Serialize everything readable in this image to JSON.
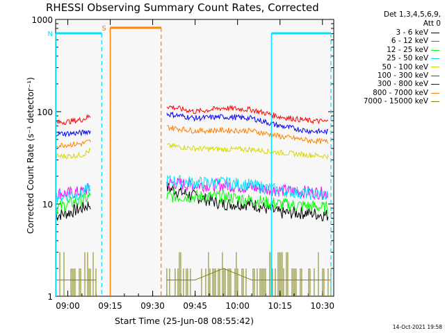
{
  "title": "RHESSI Observing Summary Count Rates, Corrected",
  "legend_header": [
    "Det 1,3,4,5,6,9,",
    "Att 0"
  ],
  "ylabel": "Corrected Count Rate (s⁻¹ detector⁻¹)",
  "xlabel": "Start Time (25-Jun-08 08:55:42)",
  "footer": "14-Oct-2021 19:58",
  "flags": [
    {
      "label": "S",
      "color": "#ff8000",
      "start": 9.25,
      "end": 9.55
    },
    {
      "label": "N",
      "color": "#00e0ff",
      "start": 8.93,
      "end": 9.2
    }
  ],
  "chart_data": {
    "type": "line",
    "title": "RHESSI Observing Summary Count Rates, Corrected",
    "xlabel": "Start Time (25-Jun-08 08:55:42)",
    "ylabel": "Corrected Count Rate (s⁻¹ detector⁻¹)",
    "yscale": "log",
    "ylim": [
      1,
      1000
    ],
    "xlim": [
      "08:55:42",
      "10:34:00"
    ],
    "x_ticks": [
      "09:00",
      "09:15",
      "09:30",
      "09:45",
      "10:00",
      "10:15",
      "10:30"
    ],
    "y_ticks": [
      "1",
      "10",
      "100",
      "1000"
    ],
    "legend_position": "right, outside plot",
    "series": [
      {
        "name": "3 - 6 keV",
        "color": "#000000",
        "segments": [
          {
            "x": [
              "08:55:42",
              "09:00",
              "09:05",
              "09:08"
            ],
            "y": [
              7.5,
              8,
              9,
              10
            ]
          },
          {
            "x": [
              "09:35",
              "09:45",
              "09:55",
              "10:05",
              "10:15",
              "10:25",
              "10:32"
            ],
            "y": [
              15,
              12,
              10,
              10,
              8,
              8,
              7.5
            ]
          }
        ]
      },
      {
        "name": "6 - 12 keV",
        "color": "#ff00ff",
        "segments": [
          {
            "x": [
              "08:55:42",
              "09:00",
              "09:05",
              "09:08"
            ],
            "y": [
              13,
              13,
              13.5,
              15
            ]
          },
          {
            "x": [
              "09:35",
              "09:45",
              "09:55",
              "10:05",
              "10:15",
              "10:25",
              "10:32"
            ],
            "y": [
              17,
              16,
              16,
              15,
              14,
              13.5,
              13
            ]
          }
        ]
      },
      {
        "name": "12 - 25 keV",
        "color": "#00ff00",
        "segments": [
          {
            "x": [
              "08:55:42",
              "09:00",
              "09:05",
              "09:08"
            ],
            "y": [
              9,
              10,
              11,
              12
            ]
          },
          {
            "x": [
              "09:35",
              "09:45",
              "09:55",
              "10:05",
              "10:15",
              "10:25",
              "10:32"
            ],
            "y": [
              12,
              12,
              12,
              11,
              10,
              9.5,
              9
            ]
          }
        ]
      },
      {
        "name": "25 - 50 keV",
        "color": "#00e0ff",
        "segments": [
          {
            "x": [
              "08:55:42",
              "09:00",
              "09:05",
              "09:08"
            ],
            "y": [
              12,
              12.5,
              13,
              15
            ]
          },
          {
            "x": [
              "09:35",
              "09:45",
              "09:55",
              "10:05",
              "10:15",
              "10:25",
              "10:32"
            ],
            "y": [
              18,
              17,
              17,
              16,
              14,
              13,
              12.5
            ]
          }
        ]
      },
      {
        "name": "50 - 100 keV",
        "color": "#d8d800",
        "segments": [
          {
            "x": [
              "08:55:42",
              "09:00",
              "09:05",
              "09:08"
            ],
            "y": [
              33,
              33,
              34,
              38
            ]
          },
          {
            "x": [
              "09:35",
              "09:45",
              "09:55",
              "10:05",
              "10:15",
              "10:25",
              "10:32"
            ],
            "y": [
              43,
              40,
              39,
              39,
              36,
              34,
              33
            ]
          }
        ]
      },
      {
        "name": "100 - 300 keV",
        "color": "#ff0000",
        "segments": [
          {
            "x": [
              "08:55:42",
              "09:00",
              "09:05",
              "09:08"
            ],
            "y": [
              76,
              78,
              82,
              90
            ]
          },
          {
            "x": [
              "09:35",
              "09:45",
              "09:55",
              "10:05",
              "10:15",
              "10:25",
              "10:32"
            ],
            "y": [
              115,
              100,
              110,
              105,
              88,
              80,
              78
            ]
          }
        ]
      },
      {
        "name": "300 - 800 keV",
        "color": "#0000ff",
        "segments": [
          {
            "x": [
              "08:55:42",
              "09:00",
              "09:05",
              "09:08"
            ],
            "y": [
              58,
              58,
              59,
              62
            ]
          },
          {
            "x": [
              "09:35",
              "09:45",
              "09:55",
              "10:05",
              "10:15",
              "10:25",
              "10:32"
            ],
            "y": [
              95,
              85,
              88,
              85,
              70,
              62,
              60
            ]
          }
        ]
      },
      {
        "name": "800 - 7000 keV",
        "color": "#ff8000",
        "segments": [
          {
            "x": [
              "08:55:42",
              "09:00",
              "09:05",
              "09:08"
            ],
            "y": [
              43,
              44,
              45,
              48
            ]
          },
          {
            "x": [
              "09:35",
              "09:45",
              "09:55",
              "10:05",
              "10:15",
              "10:25",
              "10:32"
            ],
            "y": [
              68,
              62,
              63,
              62,
              54,
              49,
              47
            ]
          }
        ]
      },
      {
        "name": "7000 - 15000 keV",
        "color": "#808000",
        "segments": [
          {
            "x": [
              "08:55:42",
              "09:00",
              "09:05",
              "09:10"
            ],
            "y": [
              1.5,
              1.5,
              1.5,
              1.5
            ]
          },
          {
            "x": [
              "09:35",
              "09:45",
              "09:55",
              "10:05",
              "10:15",
              "10:25",
              "10:33"
            ],
            "y": [
              1.5,
              1.5,
              2,
              1.5,
              1.5,
              1.5,
              1.5
            ]
          }
        ]
      }
    ],
    "annotations": [
      "S",
      "N"
    ]
  }
}
